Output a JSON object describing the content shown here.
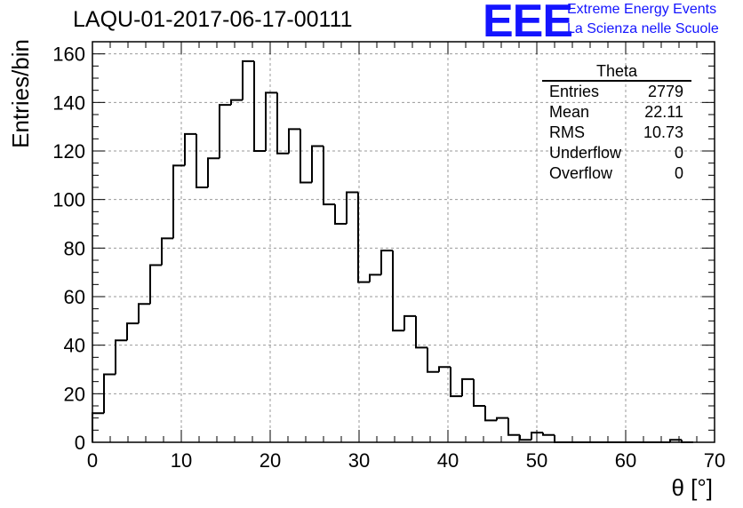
{
  "title": "LAQU-01-2017-06-17-00111",
  "logo": {
    "mark": "EEE",
    "line1": "Extreme Energy Events",
    "line2": "La Scienza nelle Scuole",
    "color": "#1414ff"
  },
  "stats": {
    "name": "Theta",
    "rows": [
      {
        "label": "Entries",
        "value": "2779"
      },
      {
        "label": "Mean",
        "value": "22.11"
      },
      {
        "label": "RMS",
        "value": "10.73"
      },
      {
        "label": "Underflow",
        "value": "0"
      },
      {
        "label": "Overflow",
        "value": "0"
      }
    ]
  },
  "chart_data": {
    "type": "bar",
    "histogram_style": "step",
    "bin_width": 1.3,
    "x_start": 0,
    "values": [
      12,
      28,
      42,
      49,
      57,
      73,
      84,
      114,
      127,
      105,
      117,
      139,
      141,
      157,
      120,
      144,
      119,
      129,
      107,
      122,
      98,
      90,
      103,
      66,
      69,
      79,
      46,
      52,
      39,
      29,
      31,
      19,
      26,
      15,
      9,
      10,
      3,
      1,
      4,
      3,
      0,
      0,
      0,
      0,
      0,
      0,
      0,
      0,
      0,
      0,
      1,
      0
    ],
    "xlabel": "θ [°]",
    "ylabel": "Entries/bin",
    "xlim": [
      0,
      70
    ],
    "ylim": [
      0,
      165
    ],
    "x_ticks": [
      0,
      10,
      20,
      30,
      40,
      50,
      60,
      70
    ],
    "y_ticks": [
      0,
      20,
      40,
      60,
      80,
      100,
      120,
      140,
      160
    ],
    "grid": true,
    "line_color": "#000000"
  }
}
